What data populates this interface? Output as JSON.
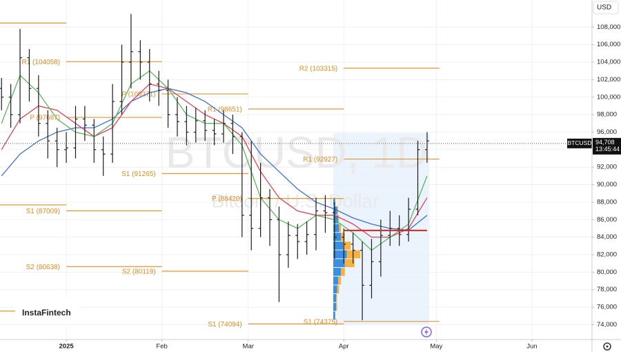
{
  "chart_data": {
    "type": "ohlc",
    "currency": "USD",
    "brand": "InstaFintech",
    "watermark": {
      "title": "BTCUSD, 1D",
      "subtitle": "Bitcoin / U.S. Dollar"
    },
    "xlim": [
      -21.5,
      170.5
    ],
    "xticks": [
      {
        "value": 0,
        "label": "2025"
      },
      {
        "value": 31,
        "label": "Feb"
      },
      {
        "value": 59,
        "label": "Mar"
      },
      {
        "value": 90,
        "label": "Apr"
      },
      {
        "value": 120,
        "label": "May"
      },
      {
        "value": 151,
        "label": "Jun"
      }
    ],
    "ylim": [
      72300,
      111100
    ],
    "yticks": [
      {
        "value": 74000,
        "label": "74,000"
      },
      {
        "value": 76000,
        "label": "76,000"
      },
      {
        "value": 78000,
        "label": "78,000"
      },
      {
        "value": 80000,
        "label": "80,000"
      },
      {
        "value": 82000,
        "label": "82,000"
      },
      {
        "value": 84000,
        "label": "84,000"
      },
      {
        "value": 86000,
        "label": "86,000"
      },
      {
        "value": 88000,
        "label": "88,000"
      },
      {
        "value": 90000,
        "label": "90,000"
      },
      {
        "value": 92000,
        "label": "92,000"
      },
      {
        "value": 94000,
        "label": "94,000"
      },
      {
        "value": 96000,
        "label": "96,000"
      },
      {
        "value": 98000,
        "label": "98,000"
      },
      {
        "value": 100000,
        "label": "100,000"
      },
      {
        "value": 102000,
        "label": "102,000"
      },
      {
        "value": 104000,
        "label": "104,000"
      },
      {
        "value": 106000,
        "label": "106,000"
      },
      {
        "value": 108000,
        "label": "108,000"
      }
    ],
    "grid": true,
    "color": "#1a1a1a",
    "ohlc": {
      "x": [
        -21,
        -18,
        -15,
        -12,
        -9,
        -6,
        -3,
        0,
        3,
        6,
        9,
        12,
        15,
        18,
        21,
        24,
        27,
        30,
        33,
        36,
        39,
        42,
        45,
        48,
        51,
        54,
        57,
        60,
        63,
        66,
        69,
        72,
        75,
        78,
        81,
        84,
        87,
        90,
        93,
        96,
        99,
        102,
        105,
        108,
        111,
        114,
        117
      ],
      "open": [
        101000,
        100000,
        98000,
        104500,
        101000,
        97000,
        95000,
        94000,
        94200,
        97500,
        96800,
        94000,
        93500,
        99500,
        104000,
        105200,
        104000,
        101500,
        100800,
        98000,
        97200,
        96000,
        97300,
        96200,
        95800,
        97000,
        95500,
        86500,
        85000,
        88500,
        86000,
        82000,
        84200,
        83500,
        84300,
        87000,
        86800,
        84000,
        83200,
        82500,
        78500,
        81200,
        84200,
        85000,
        84300,
        87200,
        94000
      ],
      "high": [
        102200,
        101500,
        107800,
        105500,
        102500,
        98500,
        96500,
        96000,
        99000,
        99000,
        97500,
        95500,
        101500,
        106000,
        109500,
        106500,
        105500,
        103000,
        102000,
        100000,
        99000,
        98800,
        98500,
        97500,
        98500,
        98000,
        96000,
        95000,
        92500,
        89500,
        87500,
        85800,
        85500,
        85800,
        88500,
        88800,
        88000,
        85000,
        84500,
        83500,
        83800,
        86000,
        87000,
        86500,
        88500,
        95000,
        96000
      ],
      "low": [
        98500,
        96500,
        97000,
        99500,
        95500,
        93000,
        92000,
        92500,
        93000,
        95000,
        92500,
        91000,
        92500,
        98000,
        101000,
        102000,
        99500,
        99000,
        96500,
        95500,
        94500,
        94800,
        95000,
        94500,
        94800,
        93500,
        84000,
        82500,
        84000,
        83000,
        76600,
        80500,
        81500,
        82000,
        82500,
        84500,
        81500,
        81000,
        81000,
        74500,
        77000,
        79500,
        83000,
        83000,
        83500,
        86500,
        92500
      ],
      "close": [
        100000,
        98000,
        104500,
        101000,
        97000,
        95000,
        94000,
        94200,
        97500,
        96800,
        94000,
        93500,
        99500,
        104000,
        105200,
        104000,
        101500,
        100800,
        98000,
        97200,
        96000,
        97300,
        96200,
        95800,
        97000,
        95500,
        86500,
        85000,
        88500,
        86000,
        82000,
        84200,
        83500,
        84300,
        87000,
        86800,
        84000,
        83200,
        82500,
        78500,
        81200,
        84200,
        85000,
        84300,
        87200,
        94000,
        95000
      ]
    },
    "ma": {
      "x": [
        -21,
        -15,
        -9,
        -3,
        3,
        9,
        15,
        21,
        27,
        33,
        39,
        45,
        51,
        57,
        63,
        69,
        75,
        81,
        87,
        93,
        99,
        105,
        111,
        117
      ],
      "series": [
        {
          "color": "#3d6fd6",
          "values": [
            91000,
            93500,
            95000,
            96000,
            96500,
            96500,
            97500,
            99500,
            100500,
            101000,
            100500,
            99500,
            98000,
            96500,
            93500,
            91500,
            89500,
            88000,
            87200,
            86200,
            85500,
            85000,
            84800,
            86500
          ]
        },
        {
          "color": "#e0405a",
          "values": [
            94000,
            97500,
            99000,
            98500,
            97000,
            95500,
            96500,
            99500,
            101500,
            101000,
            99500,
            98000,
            97000,
            95500,
            91500,
            88500,
            87000,
            86500,
            86500,
            85500,
            84000,
            84000,
            85000,
            88500
          ]
        },
        {
          "color": "#5bb45b",
          "values": [
            97000,
            102500,
            100500,
            97500,
            96000,
            95500,
            97000,
            101500,
            103000,
            101000,
            98000,
            97000,
            97000,
            94500,
            88500,
            86000,
            85000,
            86500,
            86000,
            84500,
            82500,
            84000,
            85500,
            91000
          ]
        }
      ]
    },
    "pivots": [
      {
        "value": 108470,
        "x": [
          -21.5,
          0
        ]
      },
      {
        "label": "R1 (104058)",
        "value": 104058,
        "x": [
          0,
          31
        ]
      },
      {
        "label": "P (97687)",
        "value": 97687,
        "x": [
          0,
          31
        ]
      },
      {
        "value": 87690,
        "x": [
          -21.5,
          0
        ]
      },
      {
        "label": "S1 (87009)",
        "value": 87009,
        "x": [
          0,
          31
        ]
      },
      {
        "label": "S2 (80638)",
        "value": 80638,
        "x": [
          0,
          31
        ]
      },
      {
        "value": 75560,
        "x": [
          -21.5,
          0
        ]
      },
      {
        "label": "P (100371)",
        "value": 100371,
        "x": [
          31,
          59
        ]
      },
      {
        "label": "S1 (91265)",
        "value": 91265,
        "x": [
          31,
          59
        ]
      },
      {
        "label": "S2 (80119)",
        "value": 80119,
        "x": [
          31,
          59
        ]
      },
      {
        "label": "R1 (98651)",
        "value": 98651,
        "x": [
          59,
          90
        ]
      },
      {
        "label": "P (88420)",
        "value": 88420,
        "x": [
          59,
          90
        ]
      },
      {
        "label": "S1 (74094)",
        "value": 74094,
        "x": [
          59,
          90
        ]
      },
      {
        "label": "R2 (103315)",
        "value": 103315,
        "x": [
          90,
          121
        ]
      },
      {
        "label": "R1 (92927)",
        "value": 92927,
        "x": [
          90,
          121
        ]
      },
      {
        "label": "S1 (74375)",
        "value": 74375,
        "x": [
          90,
          121
        ]
      }
    ],
    "pivot_color": "#e8952e",
    "poc": {
      "value": 84770,
      "x": [
        90,
        117
      ],
      "color": "#d9231d"
    },
    "volume_profile": {
      "levels": [
        75000,
        76000,
        77000,
        78000,
        79000,
        80000,
        81000,
        82000,
        83000,
        84000,
        85000,
        86000,
        87000,
        88000
      ],
      "buy": [
        2,
        3,
        3,
        4,
        5,
        8,
        12,
        14,
        10,
        8,
        6,
        5,
        4,
        2
      ],
      "sell": [
        0,
        1,
        1,
        2,
        3,
        4,
        10,
        14,
        8,
        4,
        2,
        1,
        1,
        0
      ],
      "buy_color": "#3a8fe0",
      "sell_color": "#f5b240"
    },
    "last_price": {
      "value": 94708,
      "label": "94,708",
      "symbol": "BTCUSD",
      "time": "13:45:44"
    }
  }
}
